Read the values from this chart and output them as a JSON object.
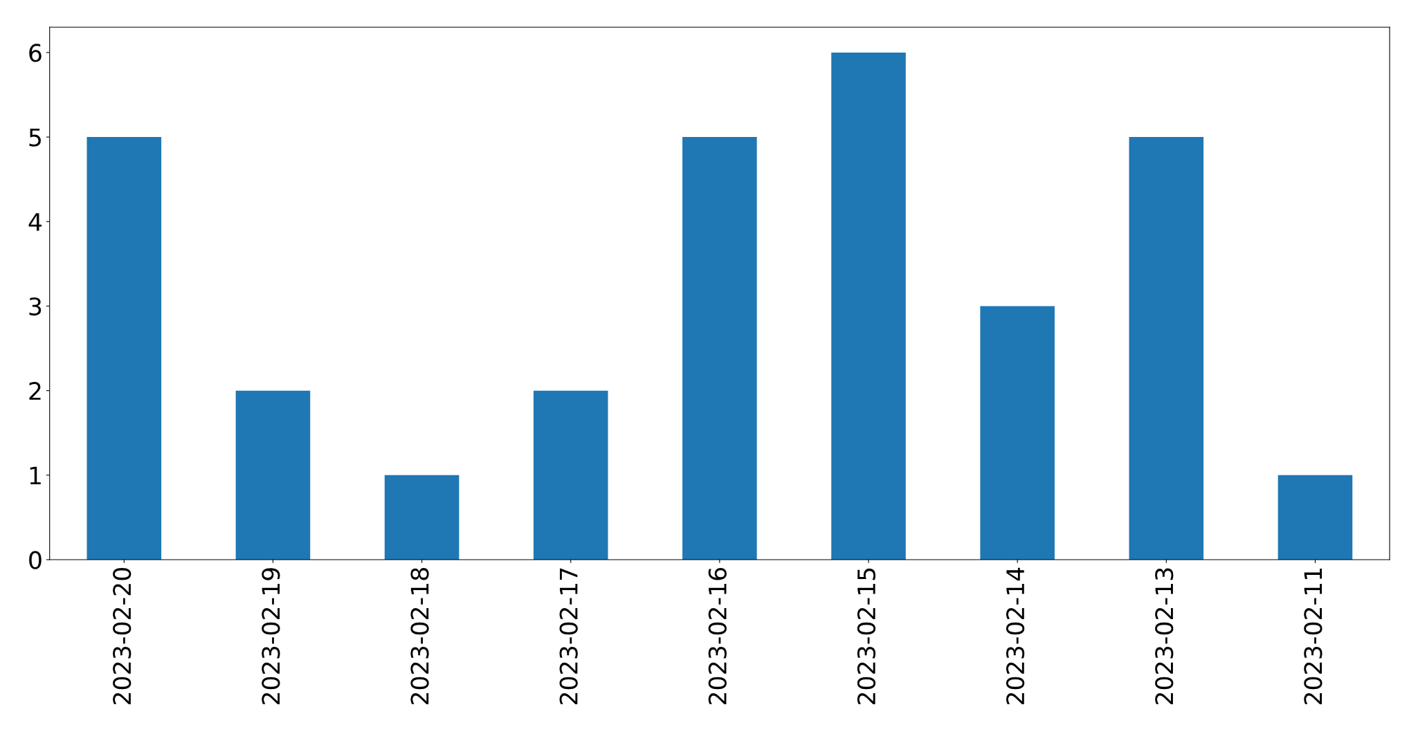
{
  "chart_data": {
    "type": "bar",
    "categories": [
      "2023-02-20",
      "2023-02-19",
      "2023-02-18",
      "2023-02-17",
      "2023-02-16",
      "2023-02-15",
      "2023-02-14",
      "2023-02-13",
      "2023-02-11"
    ],
    "values": [
      5,
      2,
      1,
      2,
      5,
      6,
      3,
      5,
      1
    ],
    "color": "#1f77b4",
    "ylim": [
      0,
      6.3
    ],
    "yticks": [
      0,
      1,
      2,
      3,
      4,
      5,
      6
    ],
    "grid": false,
    "legend": false
  }
}
